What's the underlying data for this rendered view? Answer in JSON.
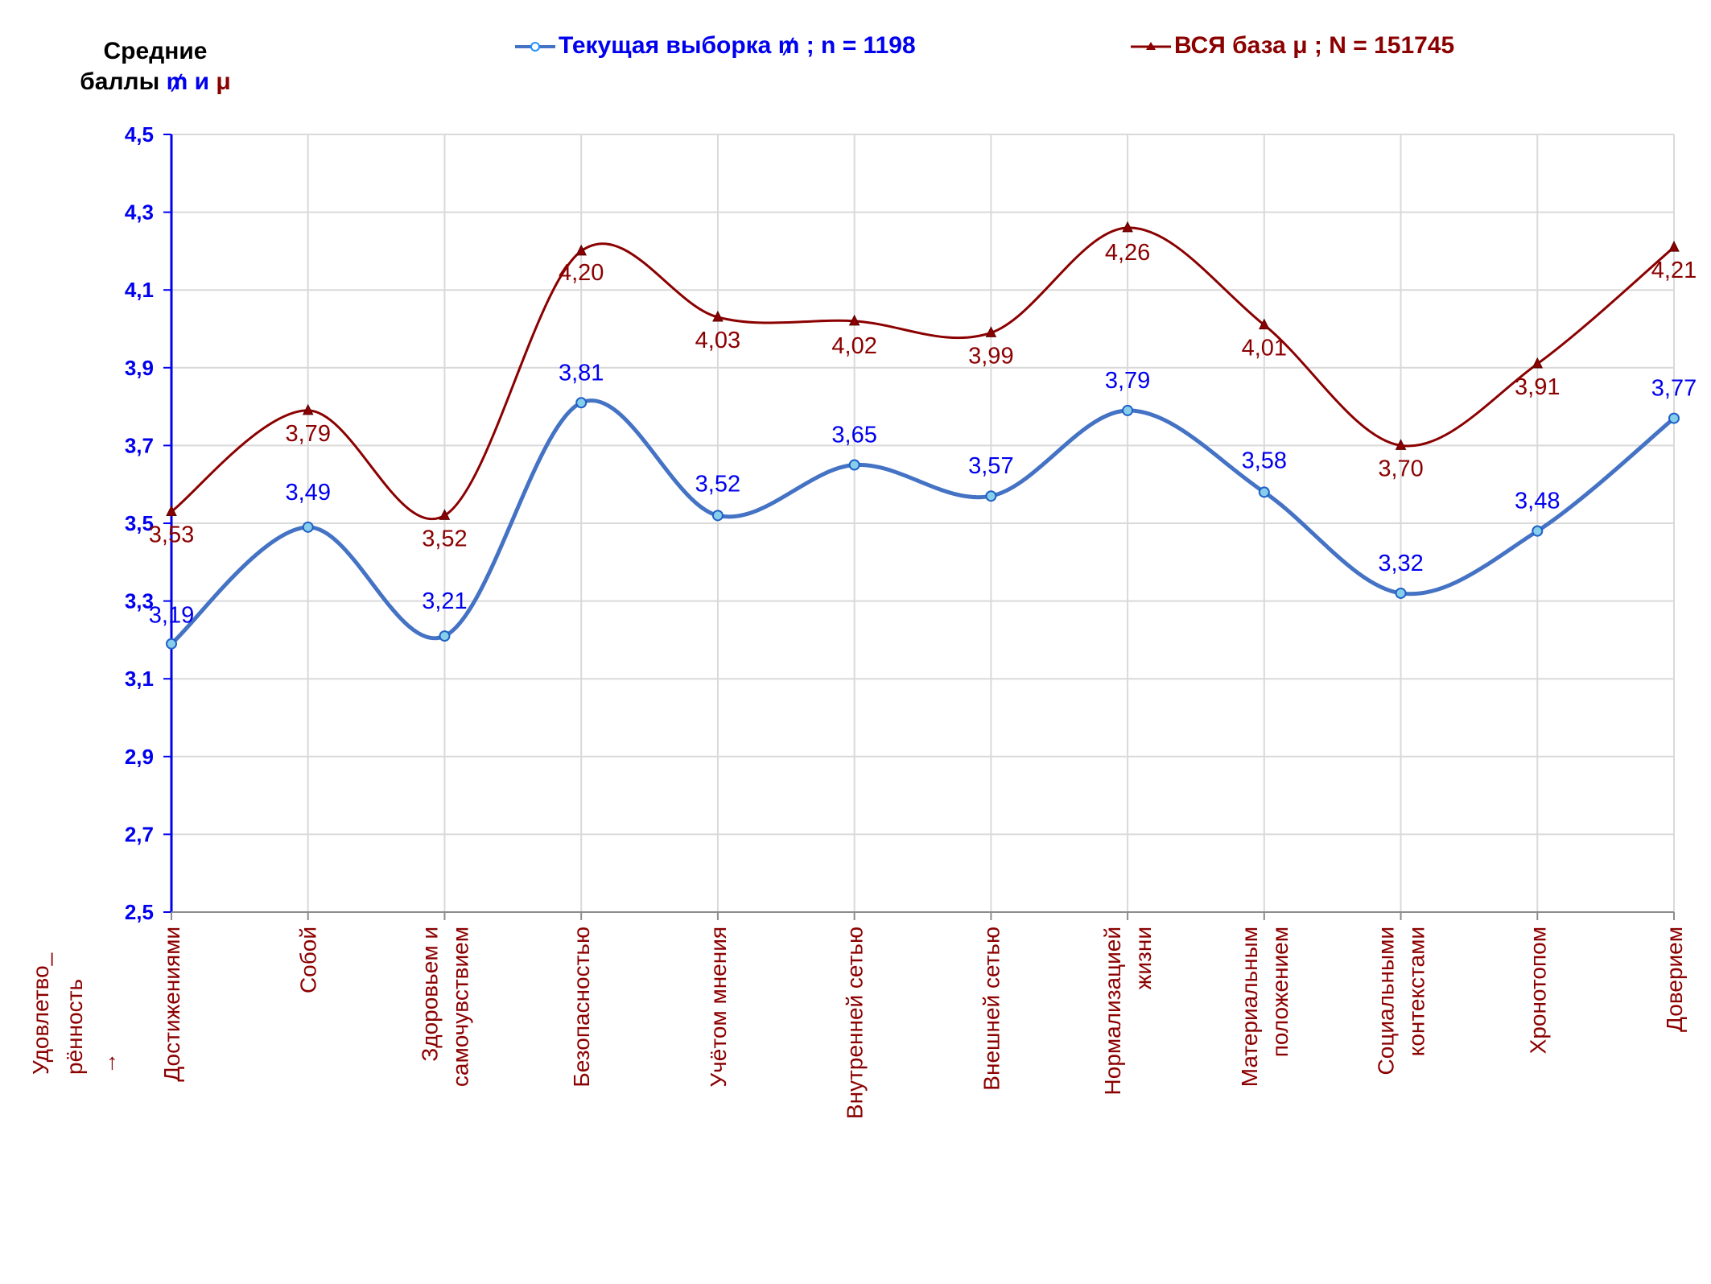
{
  "chart_data": {
    "type": "line",
    "categories": [
      [
        "Достижениями"
      ],
      [
        "Собой"
      ],
      [
        "Здоровьем и",
        "самочувствием"
      ],
      [
        "Безопасностью"
      ],
      [
        "Учётом мнения"
      ],
      [
        "Внутренней сетью"
      ],
      [
        "Внешней сетью"
      ],
      [
        "Нормализацией",
        "жизни"
      ],
      [
        "Материальным",
        "положением"
      ],
      [
        "Социальными",
        "контекстами"
      ],
      [
        "Хронотопом"
      ],
      [
        "Доверием"
      ]
    ],
    "series": [
      {
        "name": "Текущая выборка ₥ ; n = 1198",
        "color": "#4472c4",
        "label_color": "#0000ee",
        "marker": "circle",
        "values": [
          3.19,
          3.49,
          3.21,
          3.81,
          3.52,
          3.65,
          3.57,
          3.79,
          3.58,
          3.32,
          3.48,
          3.77
        ],
        "labels": [
          "3,19",
          "3,49",
          "3,21",
          "3,81",
          "3,52",
          "3,65",
          "3,57",
          "3,79",
          "3,58",
          "3,32",
          "3,48",
          "3,77"
        ]
      },
      {
        "name": "ВСЯ база μ ; N = 151745",
        "color": "#8b0000",
        "label_color": "#8b0000",
        "marker": "triangle",
        "values": [
          3.53,
          3.79,
          3.52,
          4.2,
          4.03,
          4.02,
          3.99,
          4.26,
          4.01,
          3.7,
          3.91,
          4.21
        ],
        "labels": [
          "3,53",
          "3,79",
          "3,52",
          "4,20",
          "4,03",
          "4,02",
          "3,99",
          "4,26",
          "4,01",
          "3,70",
          "3,91",
          "4,21"
        ]
      }
    ],
    "ylim": [
      2.5,
      4.5
    ],
    "yticks": [
      "2,5",
      "2,7",
      "2,9",
      "3,1",
      "3,3",
      "3,5",
      "3,7",
      "3,9",
      "4,1",
      "4,3",
      "4,5"
    ],
    "ytick_values": [
      2.5,
      2.7,
      2.9,
      3.1,
      3.3,
      3.5,
      3.7,
      3.9,
      4.1,
      4.3,
      4.5
    ],
    "ylabel": {
      "line1": "Средние",
      "line2_prefix": "баллы ",
      "sym1": "₥",
      "conj": " и ",
      "sym2": "μ"
    },
    "xlabel": [
      "Удовлетво_",
      "рённость",
      "→"
    ],
    "grid": true,
    "legend": "top-center",
    "smooth": true
  }
}
